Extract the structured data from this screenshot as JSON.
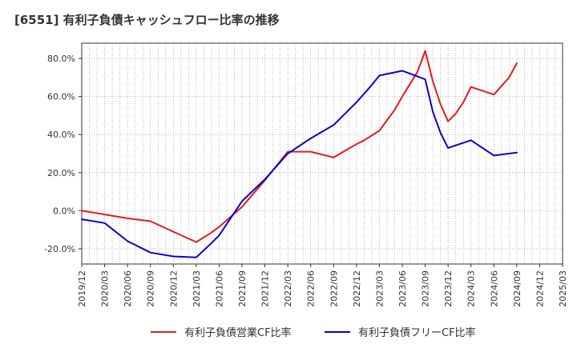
{
  "chart_data": {
    "type": "line",
    "title": "[6551]  有利子負債キャッシュフロー比率の推移",
    "xlabel": "",
    "ylabel": "",
    "ylim": [
      -28,
      88
    ],
    "yticks": [
      -20,
      0,
      20,
      40,
      60,
      80
    ],
    "ytick_labels": [
      "-20.0%",
      "0.0%",
      "20.0%",
      "40.0%",
      "60.0%",
      "80.0%"
    ],
    "x_ticks": [
      "2019/12",
      "2020/03",
      "2020/06",
      "2020/09",
      "2020/12",
      "2021/03",
      "2021/06",
      "2021/09",
      "2021/12",
      "2022/03",
      "2022/06",
      "2022/09",
      "2022/12",
      "2023/03",
      "2023/06",
      "2023/09",
      "2023/12",
      "2024/03",
      "2024/06",
      "2024/09",
      "2024/12",
      "2025/03"
    ],
    "grid": true,
    "legend_position": "bottom",
    "series": [
      {
        "name": "有利子負債営業CF比率",
        "color": "#e41a1c",
        "points": [
          [
            "2019/12",
            0.0
          ],
          [
            "2020/03",
            -2.0
          ],
          [
            "2020/06",
            -4.0
          ],
          [
            "2020/09",
            -5.5
          ],
          [
            "2020/12",
            -11.0
          ],
          [
            "2021/03",
            -16.5
          ],
          [
            "2021/05",
            -11.5
          ],
          [
            "2021/06",
            -8.5
          ],
          [
            "2021/09",
            2.0
          ],
          [
            "2021/12",
            16.0
          ],
          [
            "2022/03",
            31.0
          ],
          [
            "2022/06",
            31.0
          ],
          [
            "2022/09",
            28.0
          ],
          [
            "2022/12",
            35.0
          ],
          [
            "2023/01",
            37.0
          ],
          [
            "2023/03",
            42.0
          ],
          [
            "2023/05",
            53.0
          ],
          [
            "2023/06",
            60.0
          ],
          [
            "2023/08",
            73.0
          ],
          [
            "2023/09",
            84.0
          ],
          [
            "2023/10",
            68.0
          ],
          [
            "2023/11",
            56.0
          ],
          [
            "2023/12",
            47.0
          ],
          [
            "2024/01",
            51.0
          ],
          [
            "2024/02",
            57.0
          ],
          [
            "2024/03",
            65.0
          ],
          [
            "2024/06",
            61.0
          ],
          [
            "2024/08",
            70.0
          ],
          [
            "2024/09",
            77.5
          ]
        ]
      },
      {
        "name": "有利子負債フリーCF比率",
        "color": "#0a00cc",
        "points": [
          [
            "2019/12",
            -4.5
          ],
          [
            "2020/03",
            -6.5
          ],
          [
            "2020/06",
            -16.0
          ],
          [
            "2020/09",
            -22.0
          ],
          [
            "2020/12",
            -24.0
          ],
          [
            "2021/03",
            -24.5
          ],
          [
            "2021/05",
            -17.0
          ],
          [
            "2021/06",
            -13.0
          ],
          [
            "2021/09",
            5.0
          ],
          [
            "2021/12",
            16.5
          ],
          [
            "2022/03",
            30.0
          ],
          [
            "2022/06",
            38.0
          ],
          [
            "2022/09",
            45.0
          ],
          [
            "2022/12",
            57.0
          ],
          [
            "2023/02",
            66.0
          ],
          [
            "2023/03",
            71.0
          ],
          [
            "2023/06",
            73.5
          ],
          [
            "2023/09",
            69.0
          ],
          [
            "2023/10",
            52.0
          ],
          [
            "2023/11",
            41.0
          ],
          [
            "2023/12",
            33.0
          ],
          [
            "2024/03",
            37.0
          ],
          [
            "2024/06",
            29.0
          ],
          [
            "2024/09",
            30.5
          ]
        ]
      }
    ]
  }
}
